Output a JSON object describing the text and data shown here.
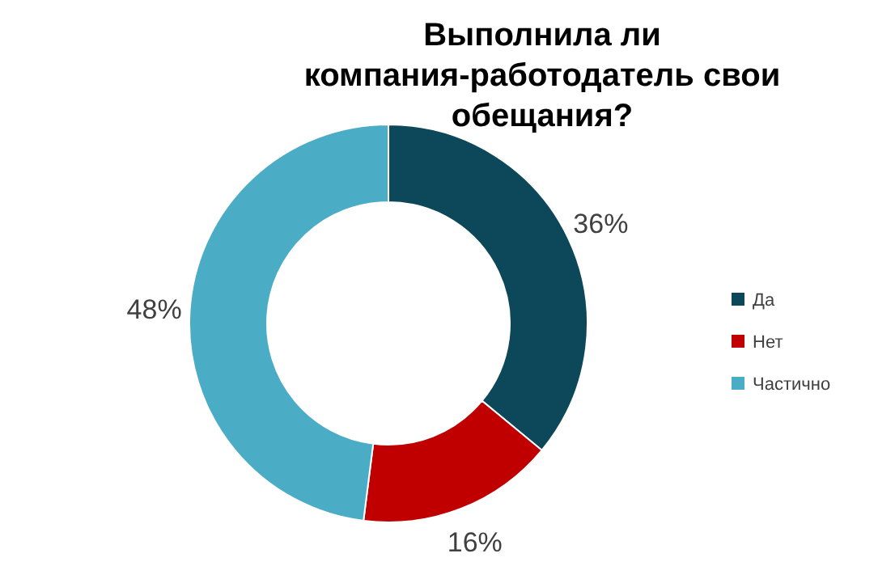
{
  "chart_data": {
    "type": "donut",
    "title": "Выполнила ли компания-работодатель свои обещания?",
    "categories": [
      "Да",
      "Нет",
      "Частично"
    ],
    "values": [
      36,
      16,
      48
    ],
    "colors": [
      "#0d475a",
      "#c00000",
      "#4bacc6"
    ],
    "value_labels": [
      "36%",
      "16%",
      "48%"
    ],
    "legend": "right"
  }
}
